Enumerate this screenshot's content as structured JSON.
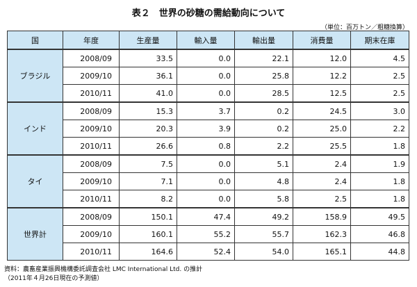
{
  "title": "表２　世界の砂糖の需給動向について",
  "unit_note": "（単位：百万トン／粗糖換算）",
  "table": {
    "headers": [
      "国",
      "年度",
      "生産量",
      "輸入量",
      "輸出量",
      "消費量",
      "期末在庫"
    ],
    "groups": [
      {
        "country": "ブラジル",
        "rows": [
          {
            "year": "2008/09",
            "values": [
              "33.5",
              "0.0",
              "22.1",
              "12.0",
              "4.5"
            ]
          },
          {
            "year": "2009/10",
            "values": [
              "36.1",
              "0.0",
              "25.8",
              "12.2",
              "2.5"
            ]
          },
          {
            "year": "2010/11",
            "values": [
              "41.0",
              "0.0",
              "28.5",
              "12.5",
              "2.5"
            ]
          }
        ]
      },
      {
        "country": "インド",
        "rows": [
          {
            "year": "2008/09",
            "values": [
              "15.3",
              "3.7",
              "0.2",
              "24.5",
              "3.0"
            ]
          },
          {
            "year": "2009/10",
            "values": [
              "20.3",
              "3.9",
              "0.2",
              "25.0",
              "2.2"
            ]
          },
          {
            "year": "2010/11",
            "values": [
              "26.6",
              "0.8",
              "2.2",
              "25.5",
              "1.8"
            ]
          }
        ]
      },
      {
        "country": "タイ",
        "rows": [
          {
            "year": "2008/09",
            "values": [
              "7.5",
              "0.0",
              "5.1",
              "2.4",
              "1.9"
            ]
          },
          {
            "year": "2009/10",
            "values": [
              "7.1",
              "0.0",
              "4.8",
              "2.4",
              "1.8"
            ]
          },
          {
            "year": "2010/11",
            "values": [
              "8.2",
              "0.0",
              "5.8",
              "2.5",
              "1.8"
            ]
          }
        ]
      },
      {
        "country": "世界計",
        "rows": [
          {
            "year": "2008/09",
            "values": [
              "150.1",
              "47.4",
              "49.2",
              "158.9",
              "49.5"
            ]
          },
          {
            "year": "2009/10",
            "values": [
              "160.1",
              "55.2",
              "55.7",
              "162.3",
              "46.8"
            ]
          },
          {
            "year": "2010/11",
            "values": [
              "164.6",
              "52.4",
              "54.0",
              "165.1",
              "44.8"
            ]
          }
        ]
      }
    ]
  },
  "notes": {
    "source": "資料：農畜産業振興機構委託調査会社 LMC International Ltd. の推計",
    "estimate": "（2011年４月26日現在の予測値）"
  }
}
